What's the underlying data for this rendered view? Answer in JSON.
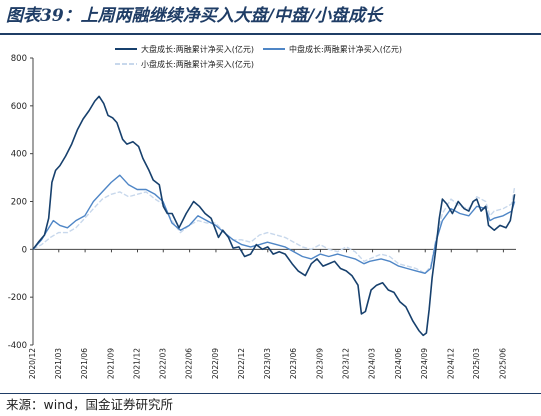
{
  "header": {
    "title": "图表39：上周两融继续净买入大盘/中盘/小盘成长"
  },
  "footer": {
    "source": "来源：wind，国金证券研究所"
  },
  "chart_data": {
    "type": "line",
    "title": "",
    "xlabel": "",
    "ylabel": "",
    "ylim": [
      -400,
      800
    ],
    "yticks": [
      -400,
      -200,
      0,
      200,
      400,
      600,
      800
    ],
    "xlim": [
      "2020-12-01",
      "2025-07-15"
    ],
    "xticks": [
      "2020/12",
      "2021/03",
      "2021/06",
      "2021/09",
      "2021/12",
      "2022/03",
      "2022/06",
      "2022/09",
      "2022/12",
      "2023/03",
      "2023/06",
      "2023/09",
      "2023/12",
      "2024/03",
      "2024/06",
      "2024/09",
      "2024/12",
      "2025/03",
      "2025/06"
    ],
    "grid": false,
    "legend_position": "top",
    "series": [
      {
        "name": "大盘成长:两融累计净买入(亿元)",
        "color": "#17406d",
        "points": [
          [
            "2020-12-01",
            0
          ],
          [
            "2020-12-20",
            30
          ],
          [
            "2021-01-10",
            60
          ],
          [
            "2021-01-25",
            130
          ],
          [
            "2021-02-05",
            280
          ],
          [
            "2021-02-18",
            330
          ],
          [
            "2021-03-05",
            350
          ],
          [
            "2021-03-25",
            390
          ],
          [
            "2021-04-15",
            440
          ],
          [
            "2021-05-05",
            500
          ],
          [
            "2021-05-25",
            545
          ],
          [
            "2021-06-15",
            580
          ],
          [
            "2021-07-05",
            620
          ],
          [
            "2021-07-20",
            640
          ],
          [
            "2021-08-05",
            610
          ],
          [
            "2021-08-20",
            560
          ],
          [
            "2021-09-05",
            550
          ],
          [
            "2021-09-20",
            530
          ],
          [
            "2021-10-10",
            460
          ],
          [
            "2021-10-25",
            440
          ],
          [
            "2021-11-15",
            450
          ],
          [
            "2021-12-05",
            430
          ],
          [
            "2021-12-20",
            380
          ],
          [
            "2022-01-10",
            330
          ],
          [
            "2022-01-25",
            290
          ],
          [
            "2022-02-15",
            270
          ],
          [
            "2022-03-01",
            180
          ],
          [
            "2022-03-15",
            150
          ],
          [
            "2022-04-01",
            150
          ],
          [
            "2022-04-25",
            90
          ],
          [
            "2022-05-20",
            150
          ],
          [
            "2022-06-15",
            200
          ],
          [
            "2022-07-05",
            180
          ],
          [
            "2022-07-25",
            150
          ],
          [
            "2022-08-15",
            130
          ],
          [
            "2022-09-10",
            50
          ],
          [
            "2022-09-25",
            80
          ],
          [
            "2022-10-15",
            50
          ],
          [
            "2022-10-31",
            5
          ],
          [
            "2022-11-20",
            10
          ],
          [
            "2022-12-10",
            -30
          ],
          [
            "2022-12-31",
            -20
          ],
          [
            "2023-01-20",
            20
          ],
          [
            "2023-02-10",
            0
          ],
          [
            "2023-03-01",
            10
          ],
          [
            "2023-03-20",
            -20
          ],
          [
            "2023-04-10",
            -10
          ],
          [
            "2023-05-01",
            -20
          ],
          [
            "2023-05-25",
            -60
          ],
          [
            "2023-06-15",
            -90
          ],
          [
            "2023-07-10",
            -110
          ],
          [
            "2023-07-31",
            -60
          ],
          [
            "2023-08-20",
            -40
          ],
          [
            "2023-09-10",
            -70
          ],
          [
            "2023-09-30",
            -60
          ],
          [
            "2023-10-20",
            -50
          ],
          [
            "2023-11-10",
            -80
          ],
          [
            "2023-11-30",
            -90
          ],
          [
            "2023-12-20",
            -110
          ],
          [
            "2024-01-10",
            -150
          ],
          [
            "2024-01-22",
            -270
          ],
          [
            "2024-02-05",
            -260
          ],
          [
            "2024-02-25",
            -170
          ],
          [
            "2024-03-15",
            -150
          ],
          [
            "2024-04-05",
            -140
          ],
          [
            "2024-04-25",
            -170
          ],
          [
            "2024-05-15",
            -180
          ],
          [
            "2024-06-05",
            -220
          ],
          [
            "2024-06-25",
            -240
          ],
          [
            "2024-07-20",
            -300
          ],
          [
            "2024-08-10",
            -340
          ],
          [
            "2024-08-25",
            -360
          ],
          [
            "2024-09-05",
            -350
          ],
          [
            "2024-09-15",
            -250
          ],
          [
            "2024-09-25",
            -120
          ],
          [
            "2024-10-08",
            0
          ],
          [
            "2024-10-20",
            130
          ],
          [
            "2024-10-31",
            210
          ],
          [
            "2024-11-15",
            190
          ],
          [
            "2024-12-05",
            150
          ],
          [
            "2024-12-25",
            200
          ],
          [
            "2025-01-15",
            170
          ],
          [
            "2025-01-31",
            160
          ],
          [
            "2025-02-15",
            200
          ],
          [
            "2025-02-28",
            210
          ],
          [
            "2025-03-15",
            160
          ],
          [
            "2025-03-31",
            180
          ],
          [
            "2025-04-10",
            100
          ],
          [
            "2025-04-30",
            80
          ],
          [
            "2025-05-20",
            100
          ],
          [
            "2025-06-10",
            90
          ],
          [
            "2025-06-25",
            120
          ],
          [
            "2025-07-10",
            230
          ]
        ]
      },
      {
        "name": "中盘成长:两融累计净买入(亿元)",
        "color": "#4f86c6",
        "points": [
          [
            "2020-12-01",
            0
          ],
          [
            "2020-12-31",
            40
          ],
          [
            "2021-01-20",
            80
          ],
          [
            "2021-02-10",
            120
          ],
          [
            "2021-03-05",
            100
          ],
          [
            "2021-03-31",
            90
          ],
          [
            "2021-04-30",
            120
          ],
          [
            "2021-05-31",
            140
          ],
          [
            "2021-06-30",
            200
          ],
          [
            "2021-07-31",
            240
          ],
          [
            "2021-08-31",
            280
          ],
          [
            "2021-09-30",
            310
          ],
          [
            "2021-10-31",
            270
          ],
          [
            "2021-11-30",
            250
          ],
          [
            "2021-12-31",
            250
          ],
          [
            "2022-01-31",
            230
          ],
          [
            "2022-02-28",
            200
          ],
          [
            "2022-03-31",
            110
          ],
          [
            "2022-04-30",
            80
          ],
          [
            "2022-05-31",
            100
          ],
          [
            "2022-06-30",
            140
          ],
          [
            "2022-07-31",
            120
          ],
          [
            "2022-08-31",
            100
          ],
          [
            "2022-09-30",
            70
          ],
          [
            "2022-10-31",
            40
          ],
          [
            "2022-11-30",
            20
          ],
          [
            "2022-12-31",
            10
          ],
          [
            "2023-01-31",
            20
          ],
          [
            "2023-02-28",
            30
          ],
          [
            "2023-03-31",
            20
          ],
          [
            "2023-04-30",
            10
          ],
          [
            "2023-05-31",
            -10
          ],
          [
            "2023-06-30",
            -30
          ],
          [
            "2023-07-31",
            -40
          ],
          [
            "2023-08-31",
            -20
          ],
          [
            "2023-09-30",
            -30
          ],
          [
            "2023-10-31",
            -20
          ],
          [
            "2023-11-30",
            -30
          ],
          [
            "2023-12-31",
            -40
          ],
          [
            "2024-01-31",
            -60
          ],
          [
            "2024-02-20",
            -50
          ],
          [
            "2024-03-31",
            -40
          ],
          [
            "2024-04-30",
            -50
          ],
          [
            "2024-05-31",
            -70
          ],
          [
            "2024-06-30",
            -80
          ],
          [
            "2024-07-31",
            -90
          ],
          [
            "2024-08-31",
            -100
          ],
          [
            "2024-09-20",
            -80
          ],
          [
            "2024-10-08",
            30
          ],
          [
            "2024-10-31",
            120
          ],
          [
            "2024-11-30",
            170
          ],
          [
            "2024-12-31",
            150
          ],
          [
            "2025-01-31",
            140
          ],
          [
            "2025-02-28",
            180
          ],
          [
            "2025-03-31",
            170
          ],
          [
            "2025-04-15",
            120
          ],
          [
            "2025-04-30",
            130
          ],
          [
            "2025-05-31",
            140
          ],
          [
            "2025-06-30",
            160
          ],
          [
            "2025-07-10",
            200
          ]
        ]
      },
      {
        "name": "小盘成长:两融累计净买入(亿元)",
        "color": "#c8d8ec",
        "points": [
          [
            "2020-12-01",
            0
          ],
          [
            "2020-12-31",
            20
          ],
          [
            "2021-01-31",
            50
          ],
          [
            "2021-02-28",
            70
          ],
          [
            "2021-03-31",
            70
          ],
          [
            "2021-04-30",
            90
          ],
          [
            "2021-05-31",
            130
          ],
          [
            "2021-06-30",
            170
          ],
          [
            "2021-07-31",
            210
          ],
          [
            "2021-08-31",
            230
          ],
          [
            "2021-09-30",
            240
          ],
          [
            "2021-10-31",
            220
          ],
          [
            "2021-11-30",
            230
          ],
          [
            "2021-12-31",
            240
          ],
          [
            "2022-01-31",
            210
          ],
          [
            "2022-02-28",
            190
          ],
          [
            "2022-03-31",
            120
          ],
          [
            "2022-04-30",
            70
          ],
          [
            "2022-05-31",
            100
          ],
          [
            "2022-06-30",
            120
          ],
          [
            "2022-07-31",
            110
          ],
          [
            "2022-08-31",
            110
          ],
          [
            "2022-09-30",
            70
          ],
          [
            "2022-10-31",
            40
          ],
          [
            "2022-11-30",
            40
          ],
          [
            "2022-12-31",
            30
          ],
          [
            "2023-01-31",
            60
          ],
          [
            "2023-02-28",
            70
          ],
          [
            "2023-03-31",
            60
          ],
          [
            "2023-04-30",
            50
          ],
          [
            "2023-05-31",
            30
          ],
          [
            "2023-06-30",
            10
          ],
          [
            "2023-07-31",
            0
          ],
          [
            "2023-08-31",
            20
          ],
          [
            "2023-09-30",
            0
          ],
          [
            "2023-10-31",
            -10
          ],
          [
            "2023-11-30",
            10
          ],
          [
            "2023-12-31",
            -10
          ],
          [
            "2024-01-31",
            -50
          ],
          [
            "2024-02-20",
            -40
          ],
          [
            "2024-03-31",
            -20
          ],
          [
            "2024-04-30",
            -30
          ],
          [
            "2024-05-31",
            -60
          ],
          [
            "2024-06-30",
            -70
          ],
          [
            "2024-07-31",
            -80
          ],
          [
            "2024-08-31",
            -100
          ],
          [
            "2024-09-20",
            -70
          ],
          [
            "2024-10-08",
            40
          ],
          [
            "2024-10-31",
            150
          ],
          [
            "2024-11-30",
            210
          ],
          [
            "2024-12-31",
            180
          ],
          [
            "2025-01-31",
            170
          ],
          [
            "2025-02-28",
            220
          ],
          [
            "2025-03-31",
            200
          ],
          [
            "2025-04-15",
            140
          ],
          [
            "2025-04-30",
            160
          ],
          [
            "2025-05-31",
            170
          ],
          [
            "2025-06-30",
            190
          ],
          [
            "2025-07-10",
            260
          ]
        ]
      }
    ]
  }
}
